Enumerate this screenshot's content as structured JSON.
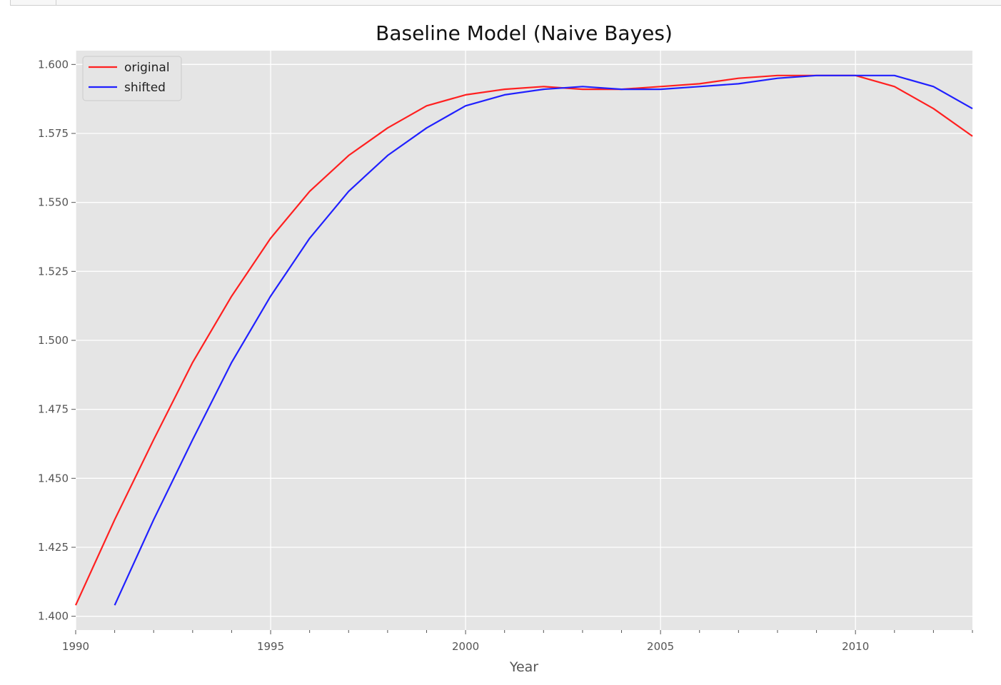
{
  "chart_data": {
    "type": "line",
    "title": "Baseline Model (Naive Bayes)",
    "xlabel": "Year",
    "ylabel": "",
    "xlim": [
      1990,
      2013
    ],
    "ylim": [
      1.395,
      1.605
    ],
    "xticks": [
      1990,
      1995,
      2000,
      2005,
      2010
    ],
    "xtick_labels": [
      "1990",
      "1995",
      "2000",
      "2005",
      "2010"
    ],
    "yticks": [
      1.4,
      1.425,
      1.45,
      1.475,
      1.5,
      1.525,
      1.55,
      1.575,
      1.6
    ],
    "ytick_labels": [
      "1.400",
      "1.425",
      "1.450",
      "1.475",
      "1.500",
      "1.525",
      "1.550",
      "1.575",
      "1.600"
    ],
    "grid": true,
    "legend_position": "top-left",
    "series": [
      {
        "name": "original",
        "color": "#ff2020",
        "x": [
          1990,
          1991,
          1992,
          1993,
          1994,
          1995,
          1996,
          1997,
          1998,
          1999,
          2000,
          2001,
          2002,
          2003,
          2004,
          2005,
          2006,
          2007,
          2008,
          2009,
          2010,
          2011,
          2012,
          2013
        ],
        "y": [
          1.404,
          1.435,
          1.464,
          1.492,
          1.516,
          1.537,
          1.554,
          1.567,
          1.577,
          1.585,
          1.589,
          1.591,
          1.592,
          1.591,
          1.591,
          1.592,
          1.593,
          1.595,
          1.596,
          1.596,
          1.596,
          1.592,
          1.584,
          1.574
        ]
      },
      {
        "name": "shifted",
        "color": "#2020ff",
        "x": [
          1991,
          1992,
          1993,
          1994,
          1995,
          1996,
          1997,
          1998,
          1999,
          2000,
          2001,
          2002,
          2003,
          2004,
          2005,
          2006,
          2007,
          2008,
          2009,
          2010,
          2011,
          2012,
          2013
        ],
        "y": [
          1.404,
          1.435,
          1.464,
          1.492,
          1.516,
          1.537,
          1.554,
          1.567,
          1.577,
          1.585,
          1.589,
          1.591,
          1.592,
          1.591,
          1.591,
          1.592,
          1.593,
          1.595,
          1.596,
          1.596,
          1.596,
          1.592,
          1.584
        ]
      }
    ]
  }
}
